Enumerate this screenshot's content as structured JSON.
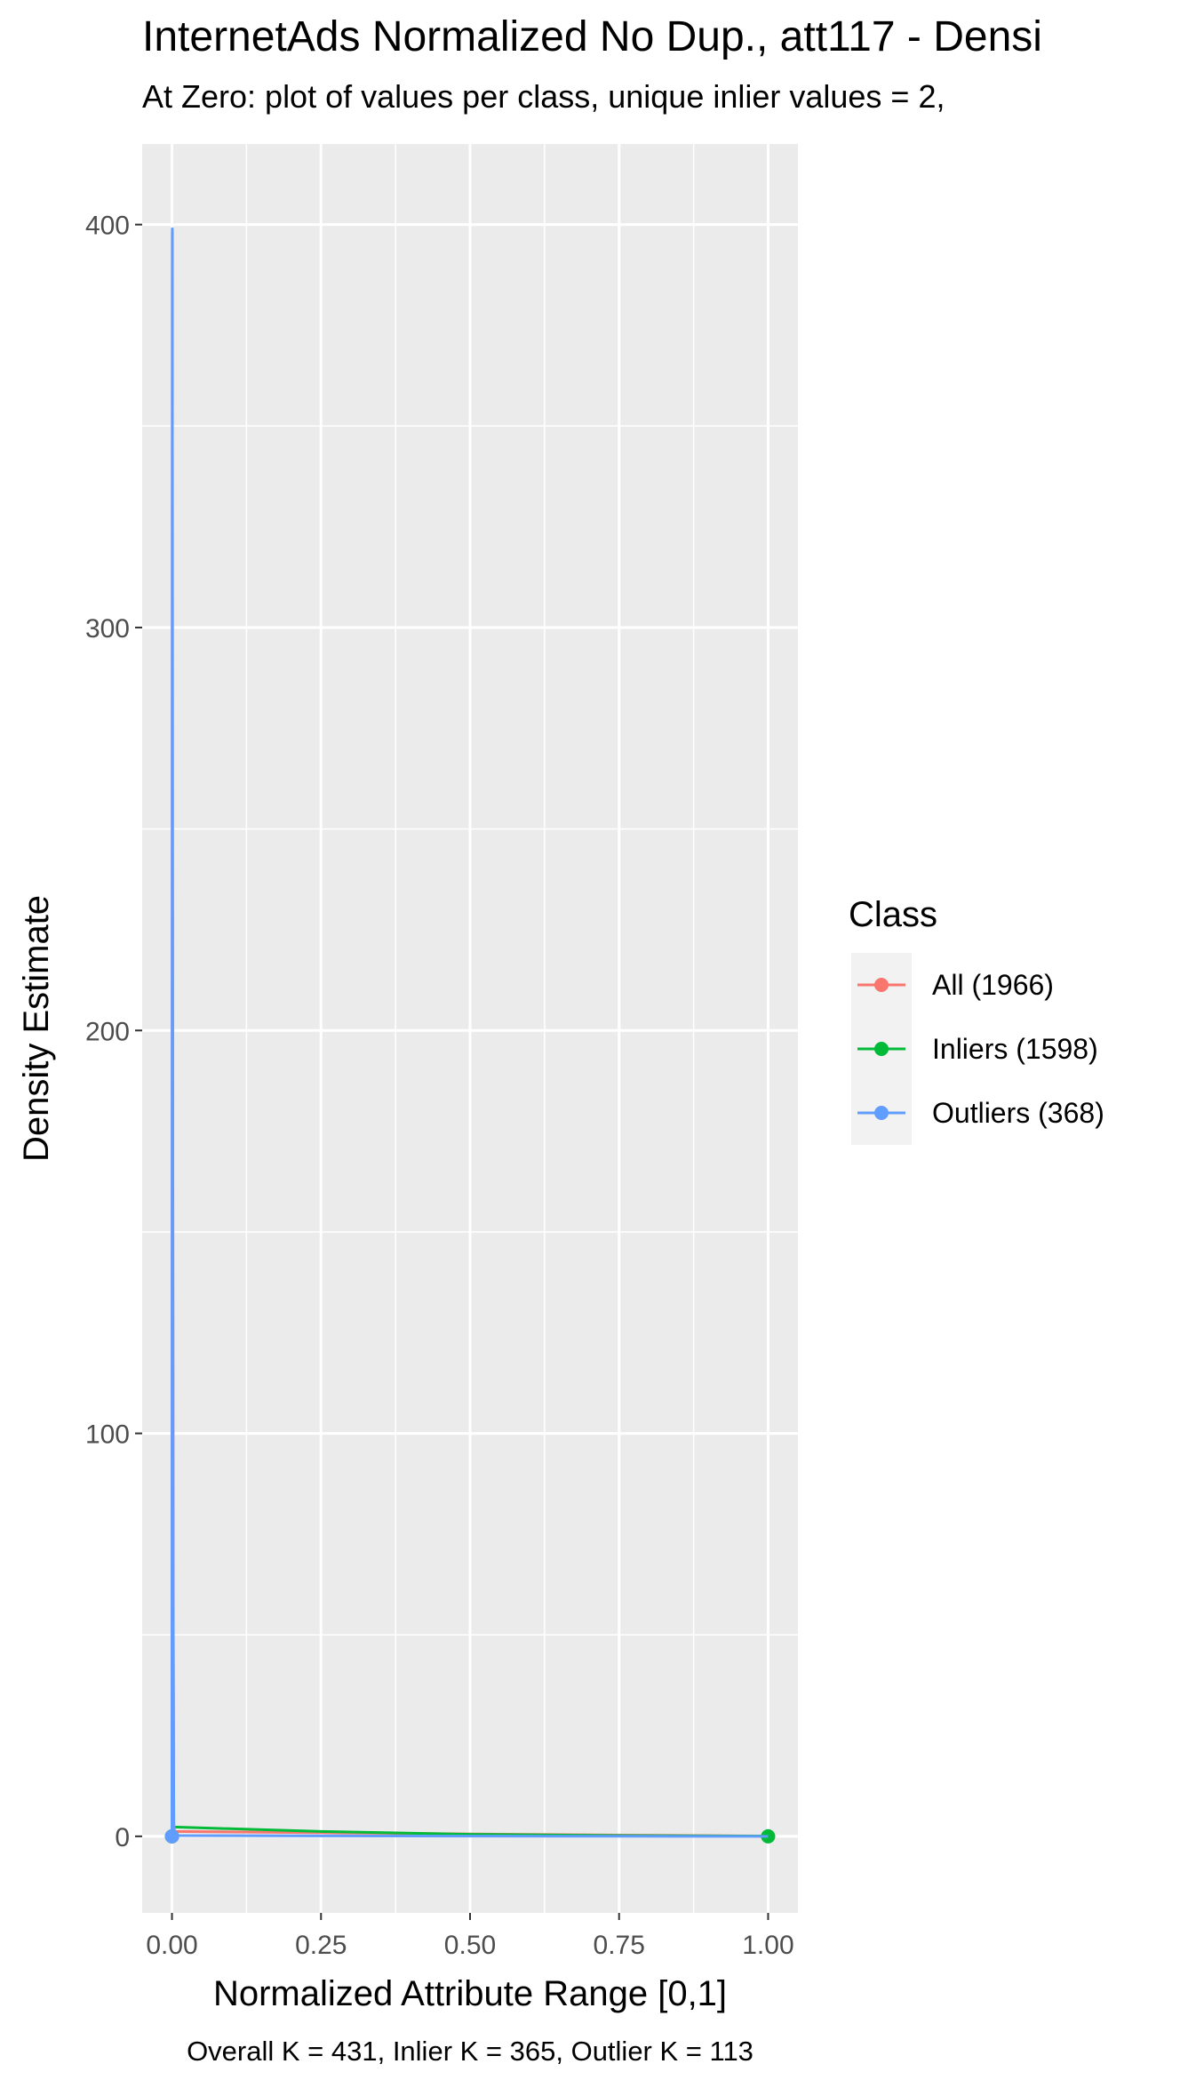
{
  "chart_data": {
    "type": "line",
    "title": "InternetAds Normalized No Dup., att117 - Densi",
    "subtitle": "At Zero: plot of values per class, unique inlier values = 2,",
    "xlabel": "Normalized Attribute Range [0,1]",
    "ylabel": "Density Estimate",
    "caption": "Overall K = 431, Inlier K = 365, Outlier K = 113",
    "xlim": [
      -0.05,
      1.05
    ],
    "ylim": [
      -19,
      420
    ],
    "xticks": [
      0,
      0.25,
      0.5,
      0.75,
      1
    ],
    "xtick_labels": [
      "0.00",
      "0.25",
      "0.50",
      "0.75",
      "1.00"
    ],
    "yticks": [
      0,
      100,
      200,
      300,
      400
    ],
    "ytick_labels": [
      "0",
      "100",
      "200",
      "300",
      "400"
    ],
    "grid": true,
    "legend": {
      "title": "Class",
      "placement": "right"
    },
    "series": [
      {
        "name": "All (1966)",
        "color": "#F8766D",
        "x": [
          0,
          0.0005,
          0.001,
          0.002,
          0.003,
          0.25,
          0.5,
          0.75,
          1
        ],
        "y": [
          0,
          398,
          240,
          58,
          1.2,
          0.9,
          0.6,
          0.3,
          0.05
        ],
        "points": [
          [
            0,
            0
          ]
        ]
      },
      {
        "name": "Inliers (1598)",
        "color": "#00BA38",
        "x": [
          0,
          0.003,
          0.25,
          0.5,
          0.75,
          1
        ],
        "y": [
          2.5,
          2.3,
          1.2,
          0.5,
          0.2,
          0.05
        ],
        "points": [
          [
            0,
            0
          ],
          [
            1,
            0
          ]
        ]
      },
      {
        "name": "Outliers (368)",
        "color": "#619CFF",
        "x": [
          0,
          0.0005,
          0.001,
          0.002,
          0.003,
          0.005,
          0.25,
          0.5,
          0.75,
          1
        ],
        "y": [
          0,
          399,
          248,
          60,
          3,
          0.2,
          0.1,
          0.05,
          0.02,
          0
        ],
        "points": [
          [
            0,
            0
          ]
        ]
      }
    ]
  }
}
